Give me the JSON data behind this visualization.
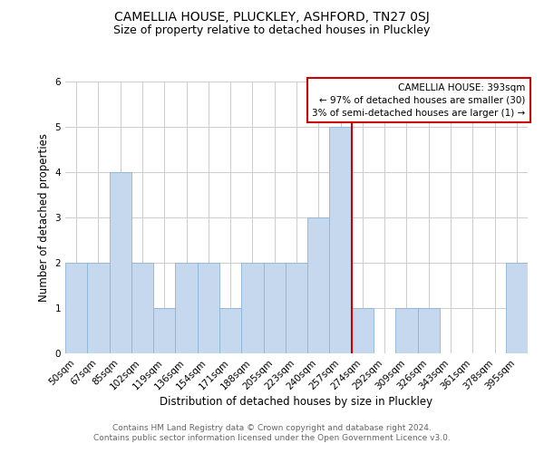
{
  "title": "CAMELLIA HOUSE, PLUCKLEY, ASHFORD, TN27 0SJ",
  "subtitle": "Size of property relative to detached houses in Pluckley",
  "xlabel": "Distribution of detached houses by size in Pluckley",
  "ylabel": "Number of detached properties",
  "footer_line1": "Contains HM Land Registry data © Crown copyright and database right 2024.",
  "footer_line2": "Contains public sector information licensed under the Open Government Licence v3.0.",
  "categories": [
    "50sqm",
    "67sqm",
    "85sqm",
    "102sqm",
    "119sqm",
    "136sqm",
    "154sqm",
    "171sqm",
    "188sqm",
    "205sqm",
    "223sqm",
    "240sqm",
    "257sqm",
    "274sqm",
    "292sqm",
    "309sqm",
    "326sqm",
    "343sqm",
    "361sqm",
    "378sqm",
    "395sqm"
  ],
  "values": [
    2,
    2,
    4,
    2,
    1,
    2,
    2,
    1,
    2,
    2,
    2,
    3,
    5,
    1,
    0,
    1,
    1,
    0,
    0,
    0,
    2
  ],
  "bar_color": "#c5d8ed",
  "bar_edge_color": "#8ab4d4",
  "vline_index": 12.5,
  "vline_color": "#cc0000",
  "legend_title": "CAMELLIA HOUSE: 393sqm",
  "legend_line1": "← 97% of detached houses are smaller (30)",
  "legend_line2": "3% of semi-detached houses are larger (1) →",
  "legend_box_color": "#cc0000",
  "ylim": [
    0,
    6
  ],
  "yticks": [
    0,
    1,
    2,
    3,
    4,
    5,
    6
  ],
  "grid_color": "#cccccc",
  "bg_color": "#ffffff",
  "title_fontsize": 10,
  "subtitle_fontsize": 9,
  "axis_label_fontsize": 8.5,
  "tick_fontsize": 7.5,
  "legend_fontsize": 7.5,
  "footer_fontsize": 6.5,
  "footer_color": "#666666"
}
